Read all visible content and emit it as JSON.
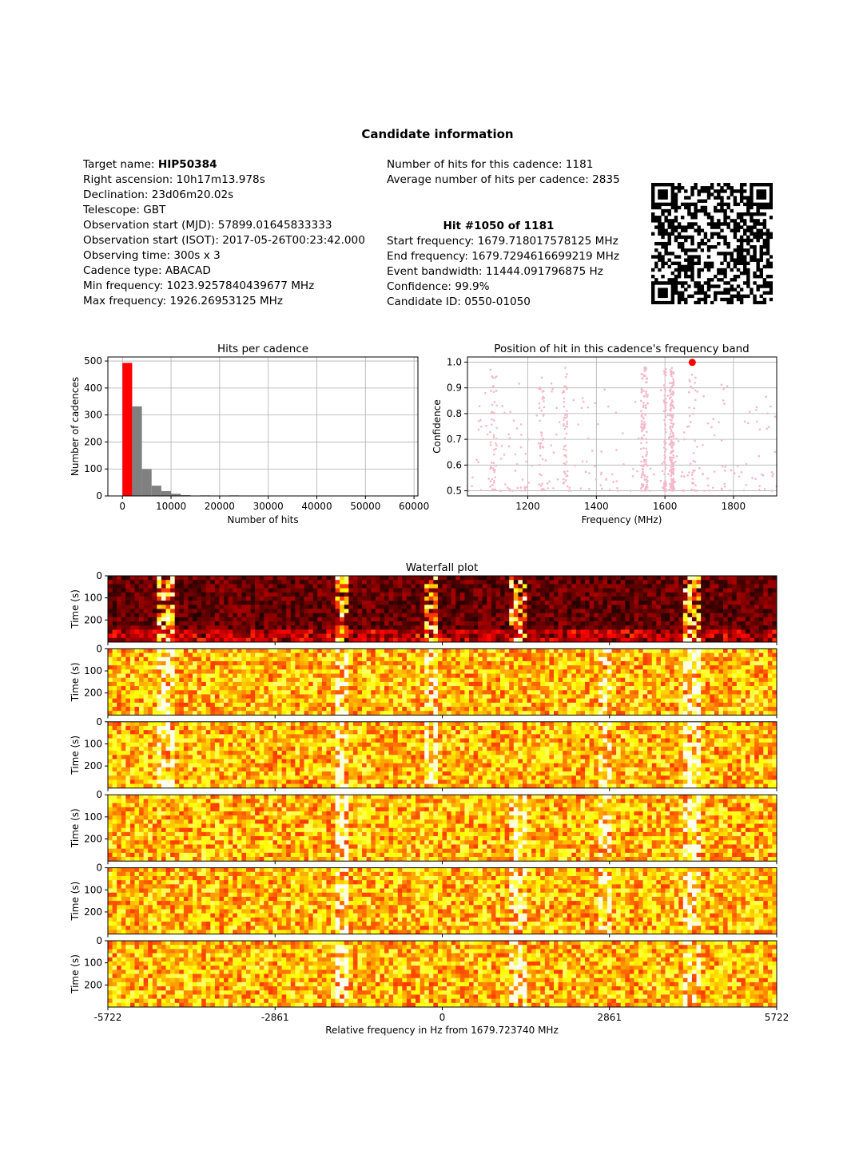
{
  "header": {
    "title": "Candidate information"
  },
  "target": {
    "name_label": "Target name:",
    "name_value": "HIP50384",
    "lines": [
      "Right ascension: 10h17m13.978s",
      "Declination: 23d06m20.02s",
      "Telescope: GBT",
      "Observation start (MJD): 57899.01645833333",
      "Observation start (ISOT): 2017-05-26T00:23:42.000",
      "Observing time: 300s x 3",
      "Cadence type: ABACAD",
      "Min frequency: 1023.9257840439677 MHz",
      "Max frequency: 1926.26953125 MHz"
    ]
  },
  "cadence": {
    "hits_line": "Number of hits for this cadence: 1181",
    "avg_line": "Average number of hits per cadence: 2835"
  },
  "hit": {
    "heading": "Hit #1050 of 1181",
    "lines": [
      "Start frequency: 1679.718017578125 MHz",
      "End frequency: 1679.7294616699219 MHz",
      "Event bandwidth: 11444.091796875 Hz",
      "Confidence: 99.9%",
      "Candidate ID: 0550-01050"
    ]
  },
  "qr": {
    "icon": "qr-code-icon"
  },
  "chart_data": [
    {
      "type": "bar",
      "title": "Hits per cadence",
      "xlabel": "Number of hits",
      "ylabel": "Number of cadences",
      "xlim": [
        -3000,
        60800
      ],
      "ylim": [
        0,
        515
      ],
      "xticks": [
        "0",
        "10000",
        "20000",
        "30000",
        "40000",
        "50000",
        "60000"
      ],
      "yticks": [
        "0",
        "100",
        "200",
        "300",
        "400",
        "500"
      ],
      "grid": true,
      "bin_width": 2000,
      "bins": [
        {
          "x0": 0,
          "value": 493,
          "highlight": true
        },
        {
          "x0": 2000,
          "value": 332
        },
        {
          "x0": 4000,
          "value": 99
        },
        {
          "x0": 6000,
          "value": 38
        },
        {
          "x0": 8000,
          "value": 18
        },
        {
          "x0": 10000,
          "value": 8
        },
        {
          "x0": 12000,
          "value": 3
        },
        {
          "x0": 14000,
          "value": 1
        },
        {
          "x0": 16000,
          "value": 2
        },
        {
          "x0": 18000,
          "value": 1
        },
        {
          "x0": 20000,
          "value": 0
        },
        {
          "x0": 22000,
          "value": 2
        }
      ],
      "colors": {
        "default": "#808080",
        "highlight": "#ff0000"
      }
    },
    {
      "type": "scatter",
      "title": "Position of hit in this cadence's frequency band",
      "xlabel": "Frequency (MHz)",
      "ylabel": "Confidence",
      "xlim": [
        1024,
        1926
      ],
      "ylim": [
        0.48,
        1.02
      ],
      "xticks": [
        "1200",
        "1400",
        "1600",
        "1800"
      ],
      "yticks": [
        "0.5",
        "0.6",
        "0.7",
        "0.8",
        "0.9",
        "1.0"
      ],
      "grid": true,
      "background_points_color": "#f4b8c8",
      "highlight_point": {
        "x": 1679.72,
        "y": 0.999,
        "color": "#ff0000"
      }
    },
    {
      "type": "heatmap",
      "title": "Waterfall plot",
      "xlabel": "Relative frequency in Hz from 1679.723740 MHz",
      "ylabel": "Time (s)",
      "xticks": [
        "-5722",
        "-2861",
        "0",
        "2861",
        "5722"
      ],
      "yticks": [
        "0",
        "100",
        "200"
      ],
      "xlim": [
        -5722,
        5722
      ],
      "ylim": [
        0,
        300
      ],
      "panels": 6,
      "colormap": "hot"
    }
  ]
}
